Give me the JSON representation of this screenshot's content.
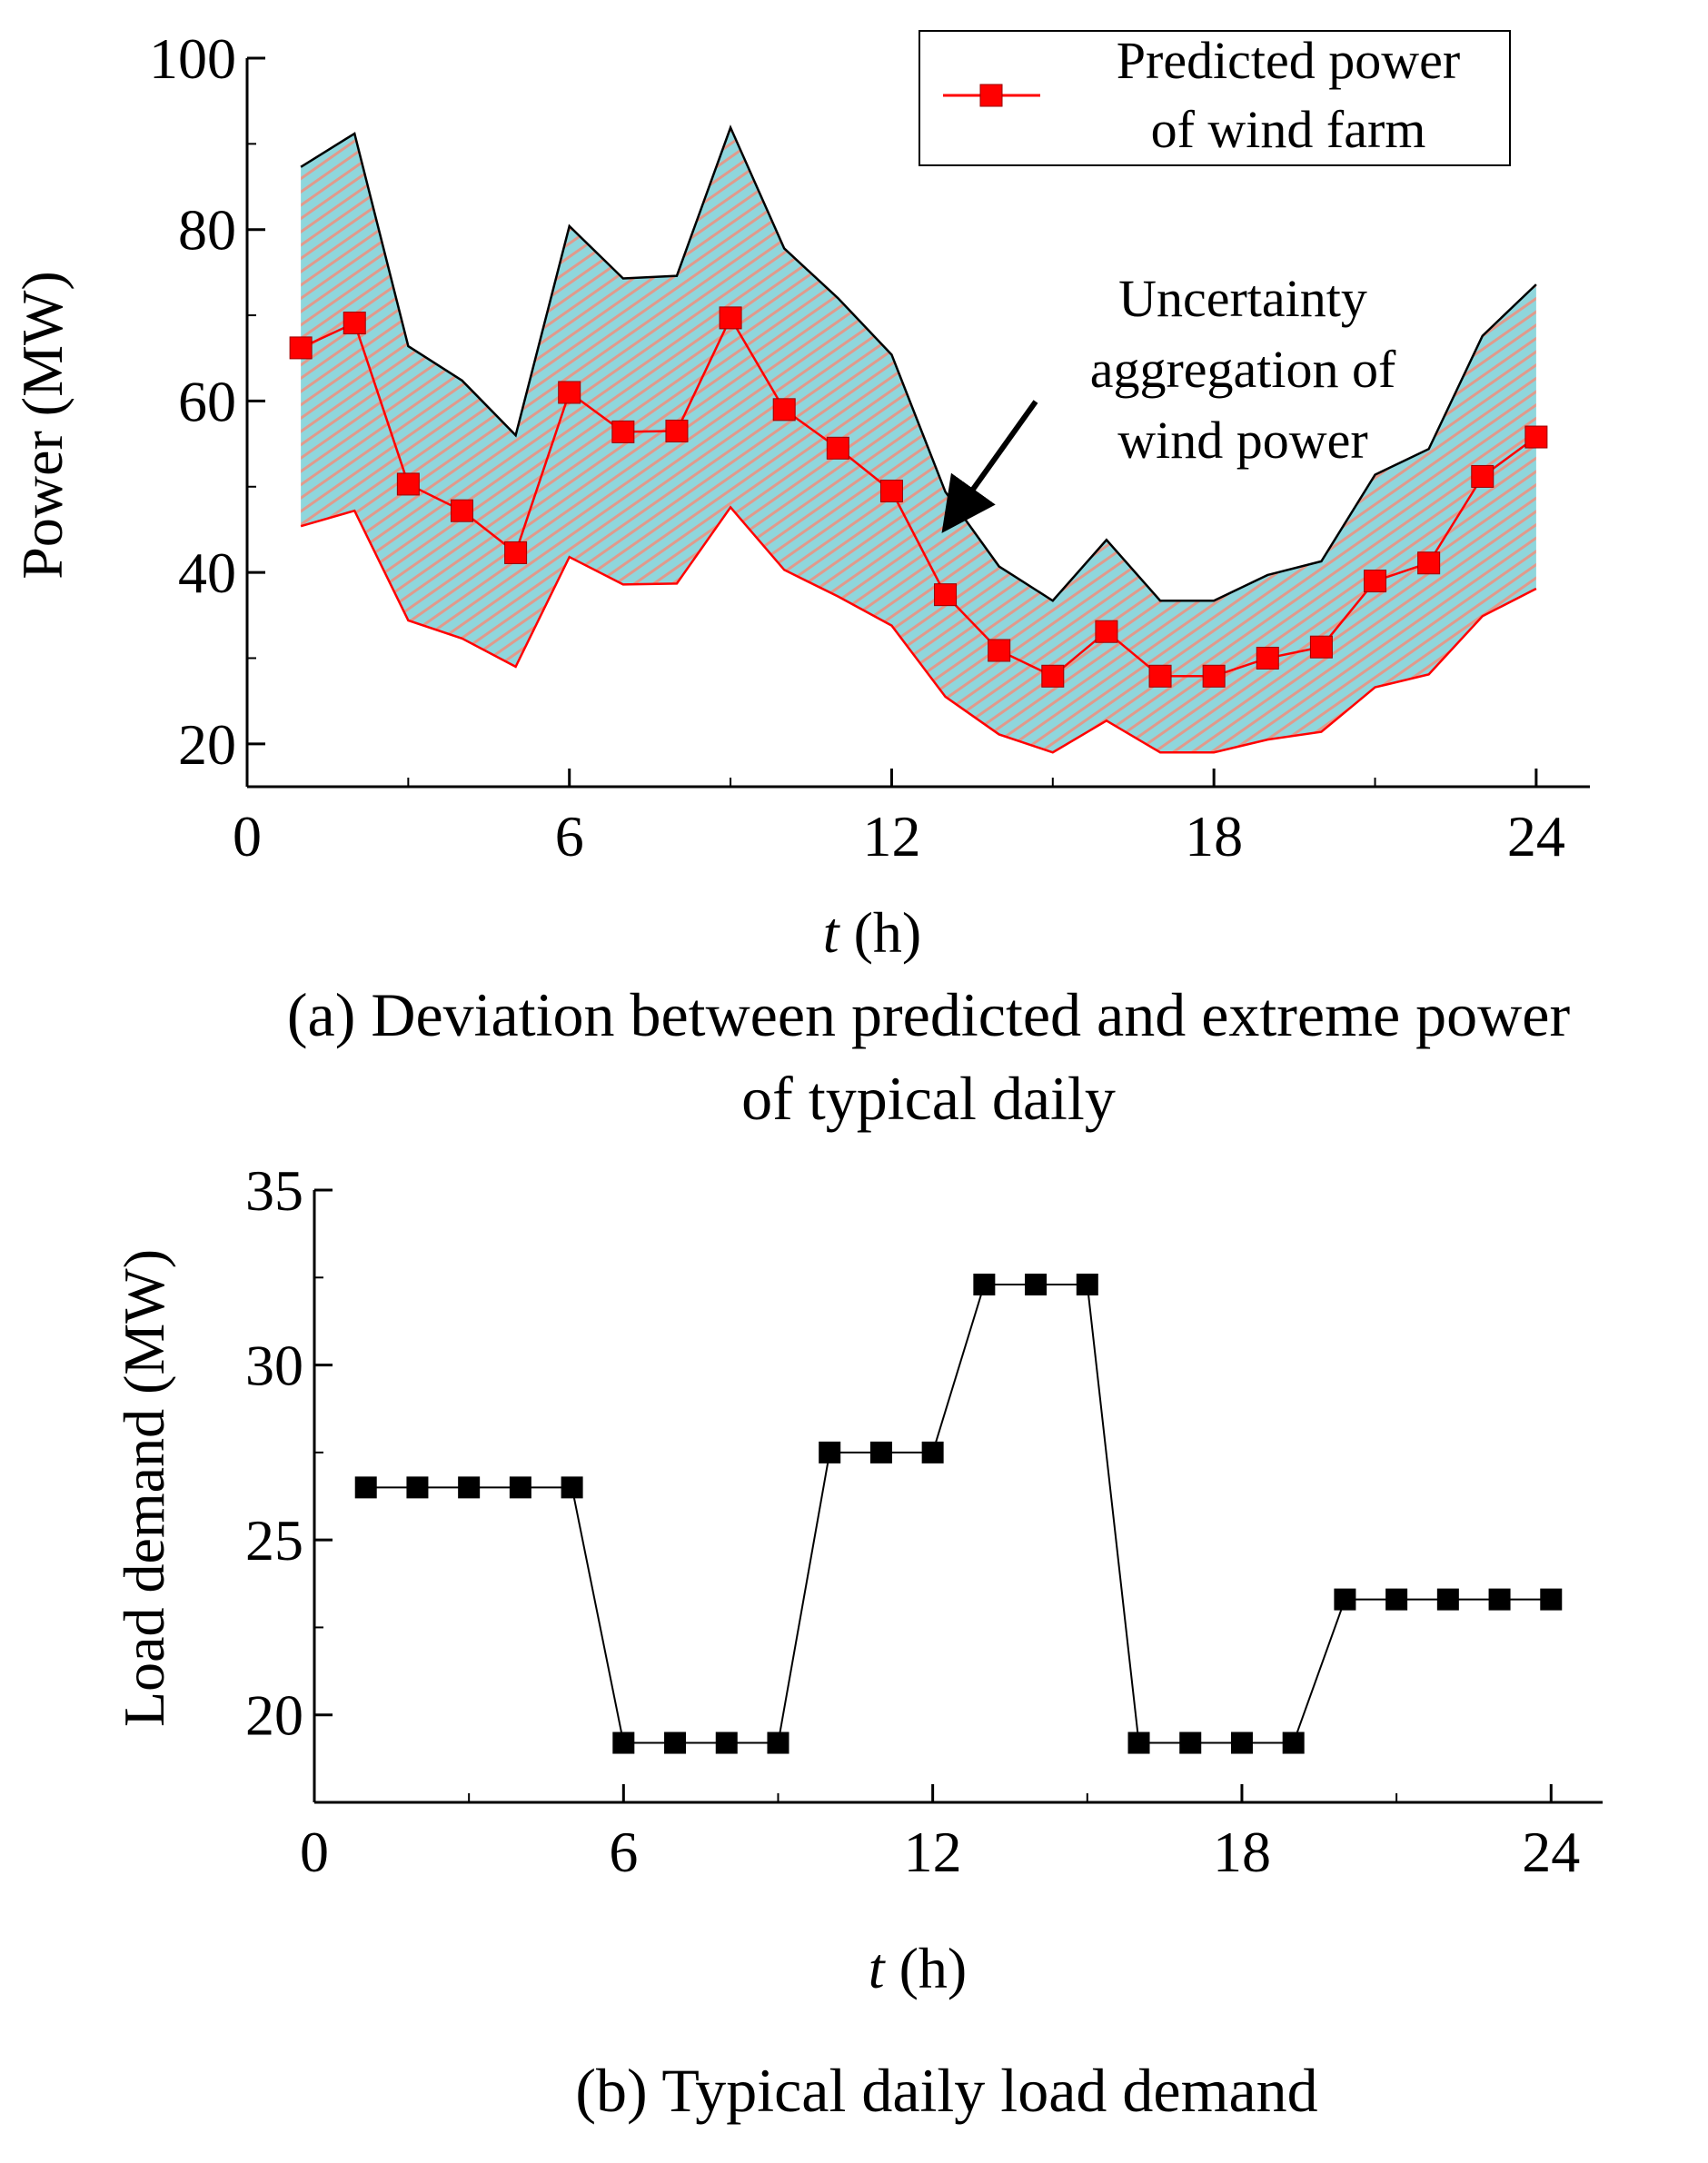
{
  "chart_data": [
    {
      "type": "line",
      "panel": "a",
      "caption_line1": "(a) Deviation between predicted and extreme power",
      "caption_line2": "of typical daily",
      "xlabel_italic": "t",
      "xlabel_rest": " (h)",
      "ylabel": "Power (MW)",
      "xlim": [
        0,
        25
      ],
      "ylim": [
        15,
        100
      ],
      "xticks": [
        0,
        6,
        12,
        18,
        24
      ],
      "yticks": [
        20,
        40,
        60,
        80,
        100
      ],
      "x": [
        1,
        2,
        3,
        4,
        5,
        6,
        7,
        8,
        9,
        10,
        11,
        12,
        13,
        14,
        15,
        16,
        17,
        18,
        19,
        20,
        21,
        22,
        23,
        24
      ],
      "series": [
        {
          "name": "Predicted power of wind farm",
          "legend_line1": "Predicted power",
          "legend_line2": "of wind farm",
          "color": "#ff0000",
          "marker": "square",
          "values": [
            66.2,
            69.1,
            50.3,
            47.2,
            42.3,
            61.0,
            56.4,
            56.5,
            69.7,
            59.0,
            54.5,
            49.5,
            37.4,
            30.9,
            27.9,
            33.1,
            27.9,
            27.9,
            30.0,
            31.3,
            39.0,
            41.1,
            51.2,
            55.8
          ]
        }
      ],
      "band": {
        "upper": [
          87.3,
          91.2,
          66.4,
          62.4,
          56.0,
          80.4,
          74.3,
          74.6,
          91.9,
          77.8,
          72.0,
          65.4,
          49.4,
          40.7,
          36.7,
          43.8,
          36.7,
          36.7,
          39.7,
          41.3,
          51.4,
          54.4,
          67.6,
          73.6
        ],
        "lower": [
          45.4,
          47.2,
          34.4,
          32.3,
          29.0,
          41.8,
          38.6,
          38.7,
          47.6,
          40.3,
          37.2,
          33.8,
          25.5,
          21.1,
          19.0,
          22.7,
          19.0,
          19.0,
          20.5,
          21.4,
          26.6,
          28.1,
          34.9,
          38.1
        ],
        "fill_color": "#8fd6dc",
        "hatch_color": "#e09a8c",
        "upper_line_color": "#000000",
        "lower_line_color": "#ff0000"
      },
      "annotation_lines": [
        "Uncertainty",
        "aggregation of",
        "wind power"
      ],
      "legend_position": "top-right"
    },
    {
      "type": "line",
      "panel": "b",
      "caption": "(b) Typical daily load demand",
      "xlabel_italic": "t",
      "xlabel_rest": " (h)",
      "ylabel": "Load demand (MW)",
      "xlim": [
        0,
        25
      ],
      "ylim": [
        17.5,
        35
      ],
      "xticks": [
        0,
        6,
        12,
        18,
        24
      ],
      "yticks": [
        20,
        25,
        30,
        35
      ],
      "x": [
        1,
        2,
        3,
        4,
        5,
        6,
        7,
        8,
        9,
        10,
        11,
        12,
        13,
        14,
        15,
        16,
        17,
        18,
        19,
        20,
        21,
        22,
        23,
        24
      ],
      "series": [
        {
          "color": "#000000",
          "marker": "square",
          "values": [
            26.5,
            26.5,
            26.5,
            26.5,
            26.5,
            19.2,
            19.2,
            19.2,
            19.2,
            27.5,
            27.5,
            27.5,
            32.3,
            32.3,
            32.3,
            19.2,
            19.2,
            19.2,
            19.2,
            23.3,
            23.3,
            23.3,
            23.3,
            23.3
          ]
        }
      ]
    }
  ]
}
